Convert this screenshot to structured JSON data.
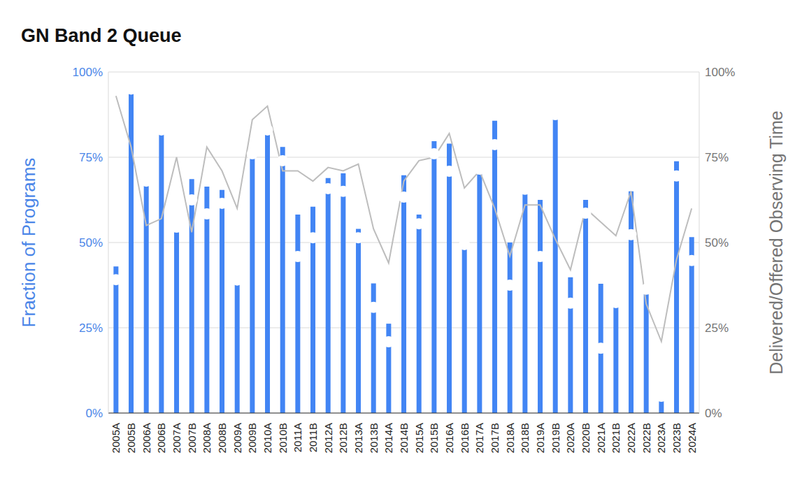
{
  "chart_data": {
    "type": "bar",
    "title": "GN Band 2 Queue",
    "y_label": "Fraction of Programs",
    "y2_label": "Delivered/Offered Observing Time",
    "categories": [
      "2005A",
      "2005B",
      "2006A",
      "2006B",
      "2007A",
      "2007B",
      "2008A",
      "2008B",
      "2009A",
      "2009B",
      "2010A",
      "2010B",
      "2011A",
      "2011B",
      "2012A",
      "2012B",
      "2013A",
      "2013B",
      "2014A",
      "2014B",
      "2015A",
      "2015B",
      "2016A",
      "2016B",
      "2017A",
      "2017B",
      "2018A",
      "2018B",
      "2019A",
      "2019B",
      "2020A",
      "2020B",
      "2021A",
      "2021B",
      "2022A",
      "2022B",
      "2023A",
      "2023B",
      "2024A"
    ],
    "series": [
      {
        "name": "Fraction of Programs",
        "type": "bar",
        "color": "#4285f4",
        "axis": "y",
        "values": [
          43,
          95,
          68,
          83,
          54.5,
          68.6,
          66.4,
          65.4,
          39,
          76,
          82.6,
          78,
          58.2,
          60.5,
          68.9,
          70.3,
          54,
          38,
          26.2,
          69.7,
          58.2,
          79.7,
          79,
          49.4,
          71.5,
          85.7,
          50,
          65.6,
          62.5,
          87.5,
          39.8,
          62.5,
          37.9,
          32.4,
          65,
          36.3,
          5,
          73.8,
          51.6
        ]
      },
      {
        "type": "scatter",
        "color": "#ffffff",
        "marker": "circle",
        "axis": "y",
        "values": [
          39.1,
          95,
          68,
          83,
          54.5,
          62.5,
          58.4,
          61.5,
          39,
          76,
          83,
          74,
          45.9,
          51.4,
          65.8,
          65,
          51.4,
          31,
          20.9,
          63.3,
          55.5,
          76,
          70.9,
          49.4,
          71.5,
          78.7,
          37.5,
          65.6,
          45.9,
          87.5,
          32.2,
          58.6,
          19,
          32.4,
          52.3,
          36.3,
          4.9,
          69.5,
          44.7
        ]
      },
      {
        "name": "Delivered/Offered Observing Time",
        "type": "line",
        "color": "#bdbdbd",
        "axis": "y2",
        "values": [
          93,
          78,
          55,
          57,
          75,
          53,
          78,
          71,
          60,
          86,
          90,
          71,
          71,
          68,
          72,
          71,
          73,
          54,
          44,
          68,
          74,
          75,
          82,
          66,
          71,
          60,
          46,
          61,
          61,
          51,
          42,
          60,
          56,
          52,
          65,
          32,
          21,
          45,
          60
        ]
      }
    ],
    "ylim": [
      0,
      100
    ],
    "yticks": [
      {
        "value": 0,
        "label": "0%"
      },
      {
        "value": 25,
        "label": "25%"
      },
      {
        "value": 50,
        "label": "50%"
      },
      {
        "value": 75,
        "label": "75%"
      },
      {
        "value": 100,
        "label": "100%"
      }
    ],
    "y2lim": [
      0,
      100
    ],
    "y2ticks": [
      {
        "value": 0,
        "label": "0%"
      },
      {
        "value": 25,
        "label": "25%"
      },
      {
        "value": 50,
        "label": "50%"
      },
      {
        "value": 75,
        "label": "75%"
      },
      {
        "value": 100,
        "label": "100%"
      }
    ],
    "grid": true
  }
}
